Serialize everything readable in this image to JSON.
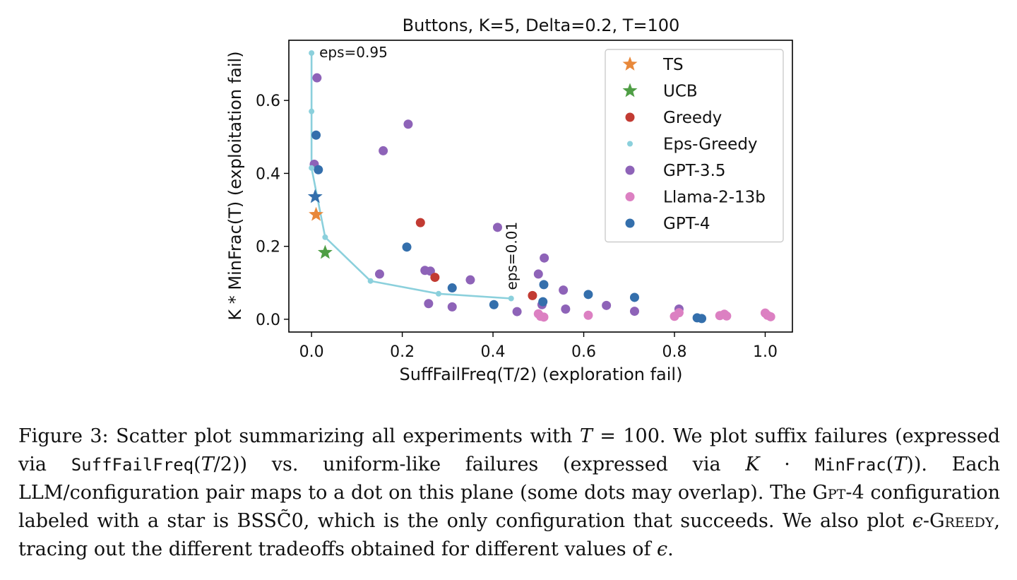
{
  "chart_data": {
    "type": "scatter",
    "title": "Buttons, K=5, Delta=0.2, T=100",
    "xlabel": "SuffFailFreq(T/2) (exploration fail)",
    "ylabel": "K * MinFrac(T) (exploitation fail)",
    "xlim": [
      -0.05,
      1.06
    ],
    "ylim": [
      -0.035,
      0.765
    ],
    "xticks": [
      0.0,
      0.2,
      0.4,
      0.6,
      0.8,
      1.0
    ],
    "xtick_labels": [
      "0.0",
      "0.2",
      "0.4",
      "0.6",
      "0.8",
      "1.0"
    ],
    "yticks": [
      0.0,
      0.2,
      0.4,
      0.6
    ],
    "ytick_labels": [
      "0.0",
      "0.2",
      "0.4",
      "0.6"
    ],
    "legend_position": "top-right",
    "series": [
      {
        "name": "TS",
        "marker": "star",
        "color": "#e8883a",
        "points": [
          [
            0.01,
            0.287
          ]
        ]
      },
      {
        "name": "UCB",
        "marker": "star",
        "color": "#4f9e45",
        "points": [
          [
            0.03,
            0.183
          ]
        ]
      },
      {
        "name": "Greedy",
        "marker": "circle",
        "color": "#c23b33",
        "points": [
          [
            0.24,
            0.265
          ],
          [
            0.272,
            0.115
          ],
          [
            0.487,
            0.065
          ]
        ]
      },
      {
        "name": "Eps-Greedy",
        "marker": "small-circle-line",
        "color": "#8bd0dc",
        "points": [
          [
            0.0,
            0.73
          ],
          [
            0.0,
            0.57
          ],
          [
            0.0,
            0.415
          ],
          [
            0.03,
            0.225
          ],
          [
            0.13,
            0.105
          ],
          [
            0.28,
            0.07
          ],
          [
            0.44,
            0.057
          ]
        ]
      },
      {
        "name": "GPT-3.5",
        "marker": "circle",
        "color": "#8e63b8",
        "points": [
          [
            0.012,
            0.662
          ],
          [
            0.213,
            0.535
          ],
          [
            0.158,
            0.462
          ],
          [
            0.006,
            0.425
          ],
          [
            0.41,
            0.252
          ],
          [
            0.513,
            0.168
          ],
          [
            0.15,
            0.124
          ],
          [
            0.25,
            0.134
          ],
          [
            0.262,
            0.132
          ],
          [
            0.35,
            0.108
          ],
          [
            0.5,
            0.124
          ],
          [
            0.555,
            0.08
          ],
          [
            0.258,
            0.043
          ],
          [
            0.31,
            0.034
          ],
          [
            0.453,
            0.021
          ],
          [
            0.508,
            0.04
          ],
          [
            0.56,
            0.028
          ],
          [
            0.65,
            0.038
          ],
          [
            0.712,
            0.022
          ],
          [
            0.81,
            0.028
          ]
        ]
      },
      {
        "name": "Llama-2-13b",
        "marker": "circle",
        "color": "#dc80c2",
        "points": [
          [
            0.5,
            0.015
          ],
          [
            0.505,
            0.008
          ],
          [
            0.512,
            0.006
          ],
          [
            0.61,
            0.011
          ],
          [
            0.8,
            0.008
          ],
          [
            0.81,
            0.018
          ],
          [
            0.9,
            0.01
          ],
          [
            0.91,
            0.014
          ],
          [
            0.915,
            0.009
          ],
          [
            1.0,
            0.017
          ],
          [
            1.005,
            0.011
          ],
          [
            1.012,
            0.007
          ]
        ]
      },
      {
        "name": "GPT-4",
        "marker": "circle",
        "color": "#346fac",
        "points": [
          [
            0.01,
            0.505
          ],
          [
            0.015,
            0.41
          ],
          [
            0.21,
            0.198
          ],
          [
            0.31,
            0.086
          ],
          [
            0.402,
            0.04
          ],
          [
            0.512,
            0.095
          ],
          [
            0.51,
            0.048
          ],
          [
            0.61,
            0.068
          ],
          [
            0.712,
            0.06
          ],
          [
            0.85,
            0.004
          ],
          [
            0.86,
            0.002
          ]
        ]
      },
      {
        "name": "GPT-4 BSSC0",
        "marker": "star",
        "color": "#346fac",
        "legend": false,
        "points": [
          [
            0.008,
            0.336
          ]
        ]
      }
    ],
    "annotations": [
      {
        "text": "eps=0.95",
        "x": 0.0,
        "y": 0.73,
        "rotation": 0
      },
      {
        "text": "eps=0.01",
        "x": 0.44,
        "y": 0.057,
        "rotation": -90
      }
    ]
  },
  "caption": {
    "p1": "Figure 3: Scatter plot summarizing all experiments with ",
    "m1": "T",
    "p2": " = 100.  We plot suffix failures (expressed via ",
    "c1": "SuffFailFreq",
    "p3": "(",
    "m2": "T",
    "p4": "/2)) vs.  uniform-like failures (expressed via ",
    "m3": "K",
    "p5": " · ",
    "c2": "MinFrac",
    "p6": "(",
    "m4": "T",
    "p7": ")).  Each LLM/configuration pair maps to a dot on this plane (some dots may overlap). The ",
    "s1": "Gpt-4",
    "p8": " configuration labeled with a star is BSS",
    "p9": "C̃",
    "p10": "0, which is the only configuration that succeeds. We also plot ",
    "m5": "ϵ",
    "p11": "-",
    "s2": "Greedy",
    "p12": ", tracing out the different tradeoffs obtained for different values of ",
    "m6": "ϵ",
    "p13": "."
  }
}
